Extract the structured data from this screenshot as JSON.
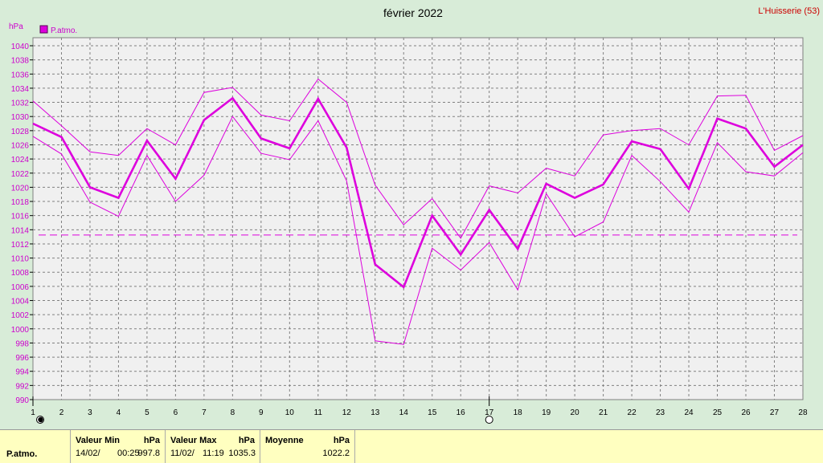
{
  "chart_data": {
    "type": "line",
    "title": "février 2022",
    "location": "L'Huisserie (53)",
    "ylabel": "hPa",
    "legend": "P.atmo.",
    "ylim": [
      990,
      1040
    ],
    "yticks": [
      990,
      992,
      994,
      996,
      998,
      1000,
      1002,
      1004,
      1006,
      1008,
      1010,
      1012,
      1014,
      1016,
      1018,
      1020,
      1022,
      1024,
      1026,
      1028,
      1030,
      1032,
      1034,
      1036,
      1038,
      1040
    ],
    "x": [
      1,
      2,
      3,
      4,
      5,
      6,
      7,
      8,
      9,
      10,
      11,
      12,
      13,
      14,
      15,
      16,
      17,
      18,
      19,
      20,
      21,
      22,
      23,
      24,
      25,
      26,
      27,
      28
    ],
    "reference_line": 1013.25,
    "moon_markers": [
      {
        "day": 1,
        "phase": "new-moon"
      },
      {
        "day": 17,
        "phase": "full-moon"
      }
    ],
    "colors": {
      "series": "#dd00dd",
      "grid": "#808080",
      "ticks": "#cc00cc",
      "location": "#cc0000"
    },
    "series": [
      {
        "name": "P.atmo.",
        "role": "mean",
        "values": [
          1029.0,
          1027.1,
          1020.0,
          1018.5,
          1026.6,
          1021.2,
          1029.5,
          1032.6,
          1026.9,
          1025.5,
          1032.5,
          1025.6,
          1009.1,
          1005.9,
          1016.0,
          1010.5,
          1016.8,
          1011.3,
          1020.5,
          1018.5,
          1020.4,
          1026.5,
          1025.4,
          1019.8,
          1029.7,
          1028.3,
          1022.9,
          1026.0
        ]
      },
      {
        "role": "max",
        "values": [
          1032.2,
          1028.7,
          1025.0,
          1024.5,
          1028.3,
          1026.0,
          1033.4,
          1034.1,
          1030.2,
          1029.4,
          1035.3,
          1032.0,
          1020.3,
          1014.7,
          1018.4,
          1012.8,
          1020.2,
          1019.2,
          1022.7,
          1021.6,
          1027.4,
          1028.0,
          1028.3,
          1026.0,
          1032.9,
          1033.0,
          1025.2,
          1027.3
        ]
      },
      {
        "role": "min",
        "values": [
          1027.2,
          1024.7,
          1017.9,
          1015.9,
          1024.5,
          1018.0,
          1021.7,
          1030.0,
          1024.8,
          1023.9,
          1029.4,
          1020.9,
          998.3,
          997.8,
          1011.4,
          1008.3,
          1012.2,
          1005.5,
          1019.1,
          1013.0,
          1015.1,
          1024.5,
          1020.8,
          1016.5,
          1026.3,
          1022.2,
          1021.6,
          1024.9
        ]
      }
    ]
  },
  "stats": {
    "row_label": "P.atmo.",
    "min": {
      "title": "Valeur Min",
      "unit": "hPa",
      "date": "14/02/",
      "time": "00:25",
      "value": "997.8"
    },
    "max": {
      "title": "Valeur Max",
      "unit": "hPa",
      "date": "11/02/",
      "time": "11:19",
      "value": "1035.3"
    },
    "avg": {
      "title": "Moyenne",
      "unit": "hPa",
      "value": "1022.2"
    }
  }
}
